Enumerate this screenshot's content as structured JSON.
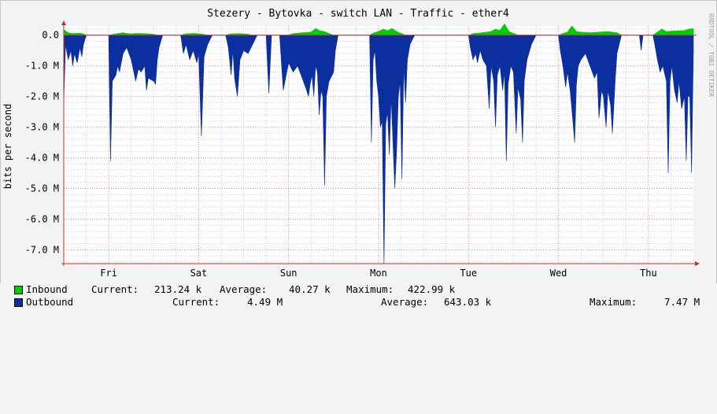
{
  "chart_data": {
    "type": "area",
    "title": "Stezery - Bytovka - switch LAN - Traffic - ether4",
    "ylabel": "bits per second",
    "watermark": "RRDTOOL / TOBI OETIKER",
    "ylim": [
      -7.45,
      0.3
    ],
    "y_ticks": [
      {
        "value": 0,
        "label": "0.0"
      },
      {
        "value": -1,
        "label": "-1.0 M"
      },
      {
        "value": -2,
        "label": "-2.0 M"
      },
      {
        "value": -3,
        "label": "-3.0 M"
      },
      {
        "value": -4,
        "label": "-4.0 M"
      },
      {
        "value": -5,
        "label": "-5.0 M"
      },
      {
        "value": -6,
        "label": "-6.0 M"
      },
      {
        "value": -7,
        "label": "-7.0 M"
      }
    ],
    "x_range": [
      0,
      7
    ],
    "x_ticks": [
      {
        "value": 0.5,
        "label": "Fri"
      },
      {
        "value": 1.5,
        "label": "Sat"
      },
      {
        "value": 2.5,
        "label": "Sun"
      },
      {
        "value": 3.5,
        "label": "Mon"
      },
      {
        "value": 4.5,
        "label": "Tue"
      },
      {
        "value": 5.5,
        "label": "Wed"
      },
      {
        "value": 6.5,
        "label": "Thu"
      }
    ],
    "day_boundaries": [
      0.5,
      1.5,
      2.5,
      3.5,
      4.5,
      5.5,
      6.5
    ],
    "grid": true,
    "colors": {
      "inbound": "#00cc00",
      "outbound": "#0b2f9e",
      "grid_major": "#e88a8a",
      "grid_minor": "#cfcfcf",
      "axis": "#c43030",
      "background": "#f3f3f3",
      "plot_bg": "#ffffff"
    },
    "series": [
      {
        "name": "Inbound",
        "color": "#00cc00",
        "unit": "M bits per second",
        "points": [
          [
            0.0,
            0.18
          ],
          [
            0.05,
            0.08
          ],
          [
            0.1,
            0.05
          ],
          [
            0.15,
            0.07
          ],
          [
            0.2,
            0.06
          ],
          [
            0.25,
            0.0
          ],
          [
            0.5,
            0.0
          ],
          [
            0.55,
            0.03
          ],
          [
            0.6,
            0.05
          ],
          [
            0.65,
            0.08
          ],
          [
            0.7,
            0.06
          ],
          [
            0.75,
            0.04
          ],
          [
            0.8,
            0.06
          ],
          [
            0.9,
            0.05
          ],
          [
            1.0,
            0.03
          ],
          [
            1.05,
            0.0
          ],
          [
            1.3,
            0.0
          ],
          [
            1.35,
            0.04
          ],
          [
            1.45,
            0.06
          ],
          [
            1.55,
            0.03
          ],
          [
            1.6,
            0.0
          ],
          [
            1.8,
            0.0
          ],
          [
            1.85,
            0.04
          ],
          [
            1.95,
            0.05
          ],
          [
            2.05,
            0.03
          ],
          [
            2.1,
            0.0
          ],
          [
            2.5,
            0.0
          ],
          [
            2.55,
            0.05
          ],
          [
            2.65,
            0.08
          ],
          [
            2.75,
            0.1
          ],
          [
            2.8,
            0.22
          ],
          [
            2.85,
            0.14
          ],
          [
            2.9,
            0.12
          ],
          [
            2.95,
            0.05
          ],
          [
            3.0,
            0.0
          ],
          [
            3.4,
            0.0
          ],
          [
            3.45,
            0.08
          ],
          [
            3.5,
            0.12
          ],
          [
            3.55,
            0.2
          ],
          [
            3.6,
            0.15
          ],
          [
            3.65,
            0.22
          ],
          [
            3.7,
            0.12
          ],
          [
            3.75,
            0.06
          ],
          [
            3.8,
            0.0
          ],
          [
            4.5,
            0.0
          ],
          [
            4.55,
            0.05
          ],
          [
            4.65,
            0.08
          ],
          [
            4.75,
            0.12
          ],
          [
            4.8,
            0.2
          ],
          [
            4.85,
            0.16
          ],
          [
            4.9,
            0.37
          ],
          [
            4.95,
            0.12
          ],
          [
            5.0,
            0.06
          ],
          [
            5.05,
            0.0
          ],
          [
            5.5,
            0.0
          ],
          [
            5.55,
            0.06
          ],
          [
            5.6,
            0.1
          ],
          [
            5.65,
            0.3
          ],
          [
            5.7,
            0.12
          ],
          [
            5.75,
            0.1
          ],
          [
            5.85,
            0.08
          ],
          [
            5.95,
            0.1
          ],
          [
            6.05,
            0.12
          ],
          [
            6.15,
            0.08
          ],
          [
            6.2,
            0.0
          ],
          [
            6.55,
            0.0
          ],
          [
            6.6,
            0.1
          ],
          [
            6.65,
            0.2
          ],
          [
            6.7,
            0.12
          ],
          [
            6.8,
            0.14
          ],
          [
            6.9,
            0.15
          ],
          [
            6.95,
            0.2
          ],
          [
            7.0,
            0.22
          ]
        ]
      },
      {
        "name": "Outbound",
        "color": "#0b2f9e",
        "unit": "M bits per second",
        "points": [
          [
            0.0,
            -2.2
          ],
          [
            0.02,
            -0.3
          ],
          [
            0.05,
            -0.8
          ],
          [
            0.08,
            -0.5
          ],
          [
            0.1,
            -1.0
          ],
          [
            0.12,
            -0.6
          ],
          [
            0.15,
            -0.9
          ],
          [
            0.18,
            -0.4
          ],
          [
            0.2,
            -0.7
          ],
          [
            0.22,
            -0.3
          ],
          [
            0.25,
            0.0
          ],
          [
            0.5,
            0.0
          ],
          [
            0.52,
            -4.1
          ],
          [
            0.54,
            -1.5
          ],
          [
            0.56,
            -1.4
          ],
          [
            0.58,
            -1.3
          ],
          [
            0.6,
            -1.0
          ],
          [
            0.62,
            -1.2
          ],
          [
            0.64,
            -0.9
          ],
          [
            0.66,
            -0.6
          ],
          [
            0.7,
            -0.4
          ],
          [
            0.75,
            -0.8
          ],
          [
            0.8,
            -1.5
          ],
          [
            0.83,
            -1.1
          ],
          [
            0.86,
            -1.2
          ],
          [
            0.9,
            -1.0
          ],
          [
            0.92,
            -1.8
          ],
          [
            0.94,
            -1.4
          ],
          [
            1.0,
            -1.5
          ],
          [
            1.02,
            -1.6
          ],
          [
            1.04,
            -0.8
          ],
          [
            1.06,
            -0.4
          ],
          [
            1.1,
            0.0
          ],
          [
            1.3,
            0.0
          ],
          [
            1.33,
            -0.6
          ],
          [
            1.36,
            -0.3
          ],
          [
            1.4,
            -0.8
          ],
          [
            1.44,
            -0.5
          ],
          [
            1.48,
            -0.9
          ],
          [
            1.5,
            -0.6
          ],
          [
            1.53,
            -3.3
          ],
          [
            1.56,
            -0.7
          ],
          [
            1.6,
            -0.3
          ],
          [
            1.65,
            0.0
          ],
          [
            1.8,
            0.0
          ],
          [
            1.83,
            -0.4
          ],
          [
            1.86,
            -1.3
          ],
          [
            1.88,
            -0.5
          ],
          [
            1.9,
            -1.4
          ],
          [
            1.93,
            -2.0
          ],
          [
            1.96,
            -0.8
          ],
          [
            2.0,
            -0.5
          ],
          [
            2.05,
            -0.6
          ],
          [
            2.1,
            -0.3
          ],
          [
            2.15,
            0.0
          ],
          [
            2.25,
            0.0
          ],
          [
            2.28,
            -1.9
          ],
          [
            2.31,
            0.0
          ],
          [
            2.4,
            0.0
          ],
          [
            2.44,
            -1.8
          ],
          [
            2.48,
            -1.2
          ],
          [
            2.5,
            -0.9
          ],
          [
            2.55,
            -1.2
          ],
          [
            2.6,
            -1.0
          ],
          [
            2.65,
            -1.4
          ],
          [
            2.7,
            -1.8
          ],
          [
            2.72,
            -2.0
          ],
          [
            2.74,
            -1.6
          ],
          [
            2.76,
            -1.3
          ],
          [
            2.78,
            -2.0
          ],
          [
            2.8,
            -1.0
          ],
          [
            2.82,
            -1.2
          ],
          [
            2.84,
            -2.6
          ],
          [
            2.86,
            -1.8
          ],
          [
            2.88,
            -2.0
          ],
          [
            2.9,
            -4.9
          ],
          [
            2.92,
            -2.0
          ],
          [
            2.95,
            -1.5
          ],
          [
            3.0,
            -1.2
          ],
          [
            3.02,
            -0.5
          ],
          [
            3.05,
            0.0
          ],
          [
            3.4,
            0.0
          ],
          [
            3.42,
            -3.5
          ],
          [
            3.44,
            -0.8
          ],
          [
            3.46,
            -0.5
          ],
          [
            3.48,
            -1.5
          ],
          [
            3.5,
            -2.0
          ],
          [
            3.52,
            -3.0
          ],
          [
            3.54,
            -2.8
          ],
          [
            3.56,
            -7.45
          ],
          [
            3.58,
            -2.9
          ],
          [
            3.6,
            -2.5
          ],
          [
            3.62,
            -3.9
          ],
          [
            3.64,
            -2.0
          ],
          [
            3.66,
            -3.5
          ],
          [
            3.68,
            -5.0
          ],
          [
            3.7,
            -3.8
          ],
          [
            3.72,
            -2.0
          ],
          [
            3.74,
            -1.5
          ],
          [
            3.76,
            -4.7
          ],
          [
            3.78,
            -1.0
          ],
          [
            3.8,
            -2.2
          ],
          [
            3.82,
            -0.8
          ],
          [
            3.85,
            -0.3
          ],
          [
            3.9,
            0.0
          ],
          [
            4.5,
            0.0
          ],
          [
            4.52,
            -0.4
          ],
          [
            4.55,
            -0.8
          ],
          [
            4.58,
            -0.6
          ],
          [
            4.6,
            -0.9
          ],
          [
            4.63,
            -0.5
          ],
          [
            4.66,
            -0.8
          ],
          [
            4.7,
            -1.0
          ],
          [
            4.73,
            -2.4
          ],
          [
            4.75,
            -1.0
          ],
          [
            4.78,
            -1.5
          ],
          [
            4.8,
            -3.0
          ],
          [
            4.82,
            -1.3
          ],
          [
            4.85,
            -1.0
          ],
          [
            4.88,
            -1.8
          ],
          [
            4.9,
            -1.2
          ],
          [
            4.92,
            -4.1
          ],
          [
            4.94,
            -1.6
          ],
          [
            4.97,
            -1.0
          ],
          [
            5.0,
            -1.2
          ],
          [
            5.03,
            -3.2
          ],
          [
            5.05,
            -1.7
          ],
          [
            5.08,
            -2.1
          ],
          [
            5.1,
            -3.5
          ],
          [
            5.12,
            -1.5
          ],
          [
            5.15,
            -0.8
          ],
          [
            5.2,
            -0.3
          ],
          [
            5.25,
            0.0
          ],
          [
            5.5,
            0.0
          ],
          [
            5.52,
            -0.5
          ],
          [
            5.55,
            -1.0
          ],
          [
            5.58,
            -1.7
          ],
          [
            5.6,
            -1.2
          ],
          [
            5.63,
            -1.8
          ],
          [
            5.66,
            -2.8
          ],
          [
            5.68,
            -3.5
          ],
          [
            5.7,
            -1.6
          ],
          [
            5.72,
            -1.0
          ],
          [
            5.75,
            -0.8
          ],
          [
            5.8,
            -0.6
          ],
          [
            5.85,
            -1.0
          ],
          [
            5.9,
            -1.4
          ],
          [
            5.93,
            -1.2
          ],
          [
            5.95,
            -2.7
          ],
          [
            5.98,
            -1.8
          ],
          [
            6.0,
            -2.0
          ],
          [
            6.03,
            -3.0
          ],
          [
            6.05,
            -1.8
          ],
          [
            6.08,
            -2.3
          ],
          [
            6.1,
            -3.2
          ],
          [
            6.13,
            -1.5
          ],
          [
            6.15,
            -0.6
          ],
          [
            6.2,
            0.0
          ],
          [
            6.4,
            0.0
          ],
          [
            6.42,
            -0.5
          ],
          [
            6.44,
            0.0
          ],
          [
            6.55,
            0.0
          ],
          [
            6.57,
            -0.3
          ],
          [
            6.6,
            -0.8
          ],
          [
            6.63,
            -1.2
          ],
          [
            6.66,
            -1.0
          ],
          [
            6.7,
            -1.5
          ],
          [
            6.72,
            -4.5
          ],
          [
            6.74,
            -1.5
          ],
          [
            6.76,
            -1.0
          ],
          [
            6.79,
            -1.8
          ],
          [
            6.82,
            -2.2
          ],
          [
            6.84,
            -1.5
          ],
          [
            6.87,
            -2.4
          ],
          [
            6.9,
            -2.0
          ],
          [
            6.92,
            -4.1
          ],
          [
            6.94,
            -2.0
          ],
          [
            6.96,
            -2.0
          ],
          [
            6.98,
            -4.49
          ],
          [
            7.0,
            -0.5
          ]
        ]
      }
    ],
    "legend": {
      "inbound": {
        "label": "Inbound",
        "current_label": "Current:",
        "current": "213.24 k",
        "average_label": "Average:",
        "average": "40.27 k",
        "maximum_label": "Maximum:",
        "maximum": "422.99 k"
      },
      "outbound": {
        "label": "Outbound",
        "current_label": "Current:",
        "current": "4.49 M",
        "average_label": "Average:",
        "average": "643.03 k",
        "maximum_label": "Maximum:",
        "maximum": "7.47 M"
      }
    }
  }
}
